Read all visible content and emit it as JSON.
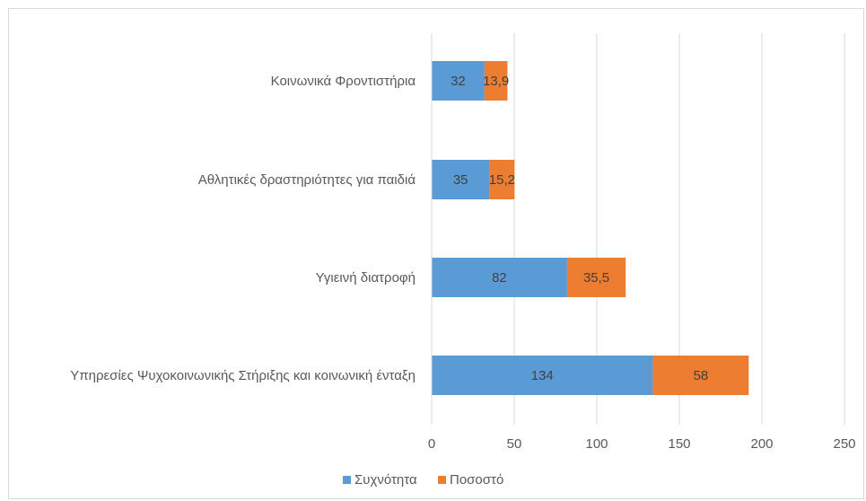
{
  "chart_data": {
    "type": "bar",
    "orientation": "horizontal",
    "stacked": true,
    "categories": [
      "Κοινωνικά Φροντιστήρια",
      "Αθλητικές δραστηριότητες για παιδιά",
      "Υγιεινή διατροφή",
      "Υπηρεσίες Ψυχοκοινωνικής Στήριξης και κοινωνική ένταξη"
    ],
    "series": [
      {
        "name": "Συχνότητα",
        "color": "#5b9bd5",
        "values": [
          32,
          35,
          82,
          134
        ],
        "labels": [
          "32",
          "35",
          "82",
          "134"
        ]
      },
      {
        "name": "Ποσοστό",
        "color": "#ed7d31",
        "values": [
          13.9,
          15.2,
          35.5,
          58
        ],
        "labels": [
          "13,9",
          "15,2",
          "35,5",
          "58"
        ]
      }
    ],
    "xlim": [
      0,
      250
    ],
    "xticks": [
      0,
      50,
      100,
      150,
      200,
      250
    ],
    "xtick_labels": [
      "0",
      "50",
      "100",
      "150",
      "200",
      "250"
    ],
    "grid": "vertical",
    "legend_position": "bottom"
  }
}
